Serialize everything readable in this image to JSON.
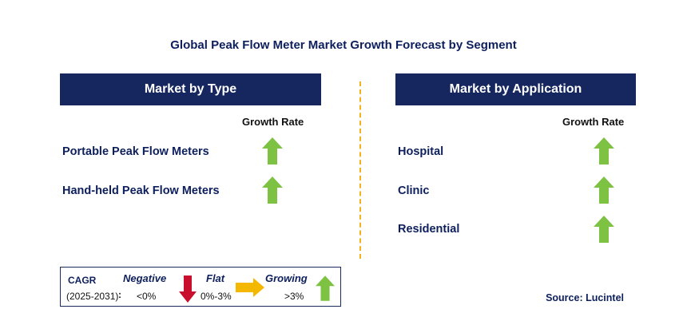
{
  "title": "Global Peak Flow Meter Market Growth Forecast by Segment",
  "left_panel": {
    "header": "Market by Type",
    "column_label": "Growth Rate",
    "rows": [
      {
        "label": "Portable Peak Flow Meters",
        "trend": "growing"
      },
      {
        "label": "Hand-held Peak Flow Meters",
        "trend": "growing"
      }
    ]
  },
  "right_panel": {
    "header": "Market by Application",
    "column_label": "Growth Rate",
    "rows": [
      {
        "label": "Hospital",
        "trend": "growing"
      },
      {
        "label": "Clinic",
        "trend": "growing"
      },
      {
        "label": "Residential",
        "trend": "growing"
      }
    ]
  },
  "legend": {
    "cagr_label": "CAGR",
    "period": "(2025-2031)",
    "colon": ":",
    "negative": {
      "label": "Negative",
      "range": "<0%",
      "color": "#c8102e",
      "icon": "down-arrow-icon"
    },
    "flat": {
      "label": "Flat",
      "range": "0%-3%",
      "color": "#f5b800",
      "icon": "right-arrow-icon"
    },
    "growing": {
      "label": "Growing",
      "range": ">3%",
      "color": "#7dc242",
      "icon": "up-arrow-icon"
    }
  },
  "source": "Source: Lucintel",
  "colors": {
    "header_bg": "#15275e",
    "divider": "#f2b21b",
    "text_navy": "#0d1f5c"
  }
}
